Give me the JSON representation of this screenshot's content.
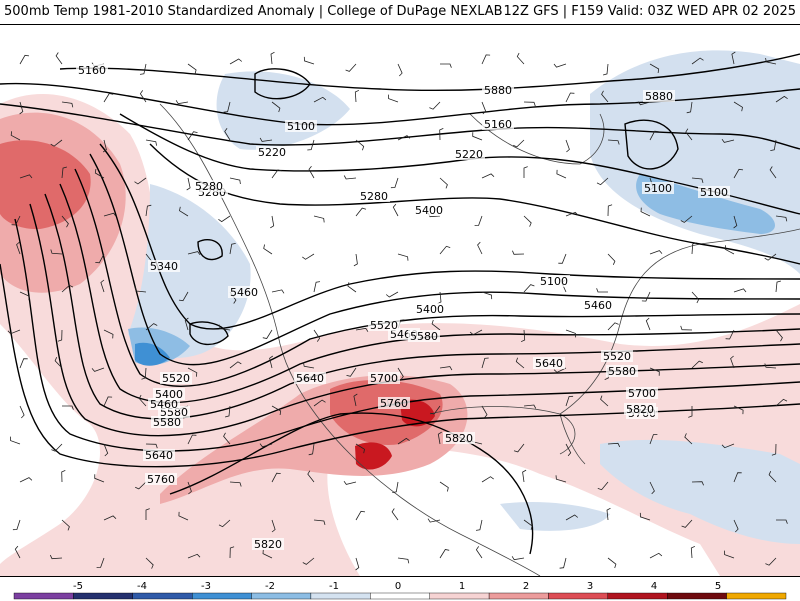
{
  "header": {
    "left": "500mb Temp 1981-2010 Standardized Anomaly | College of DuPage NEXLAB",
    "right": "12Z GFS | F159 Valid: 03Z WED APR 02 2025"
  },
  "contour_labels": [
    "5160",
    "5100",
    "5220",
    "5280",
    "5400",
    "5460",
    "5520",
    "5580",
    "5280",
    "5340",
    "5400",
    "5460",
    "5580",
    "5640",
    "5760",
    "5820",
    "5880",
    "5160",
    "5220",
    "5280",
    "5400",
    "5460",
    "5520",
    "5580",
    "5640",
    "5700",
    "5760",
    "5820",
    "5880",
    "5100",
    "5100",
    "5100",
    "5460",
    "5520",
    "5580",
    "5640",
    "5700",
    "5760",
    "5820"
  ],
  "colorbar": {
    "ticks": [
      "-5",
      "-4",
      "-3",
      "-2",
      "-1",
      "0",
      "1",
      "2",
      "3",
      "4",
      "5"
    ],
    "colors": [
      "#7b3fa0",
      "#24306e",
      "#2f5aa8",
      "#3f90d4",
      "#8cbde4",
      "#d4e2f0",
      "#ffffff",
      "#f6d3d3",
      "#ec9c9c",
      "#dd4d55",
      "#b0141f",
      "#6e0a0e",
      "#f0a800"
    ]
  },
  "anomaly_colors": {
    "light_blue": "#d3e0ef",
    "mid_blue": "#8ebde4",
    "blue": "#3f90d4",
    "light_pink": "#f8dbdb",
    "pink": "#efabab",
    "red": "#e06a6a",
    "dark_red": "#c91820"
  }
}
